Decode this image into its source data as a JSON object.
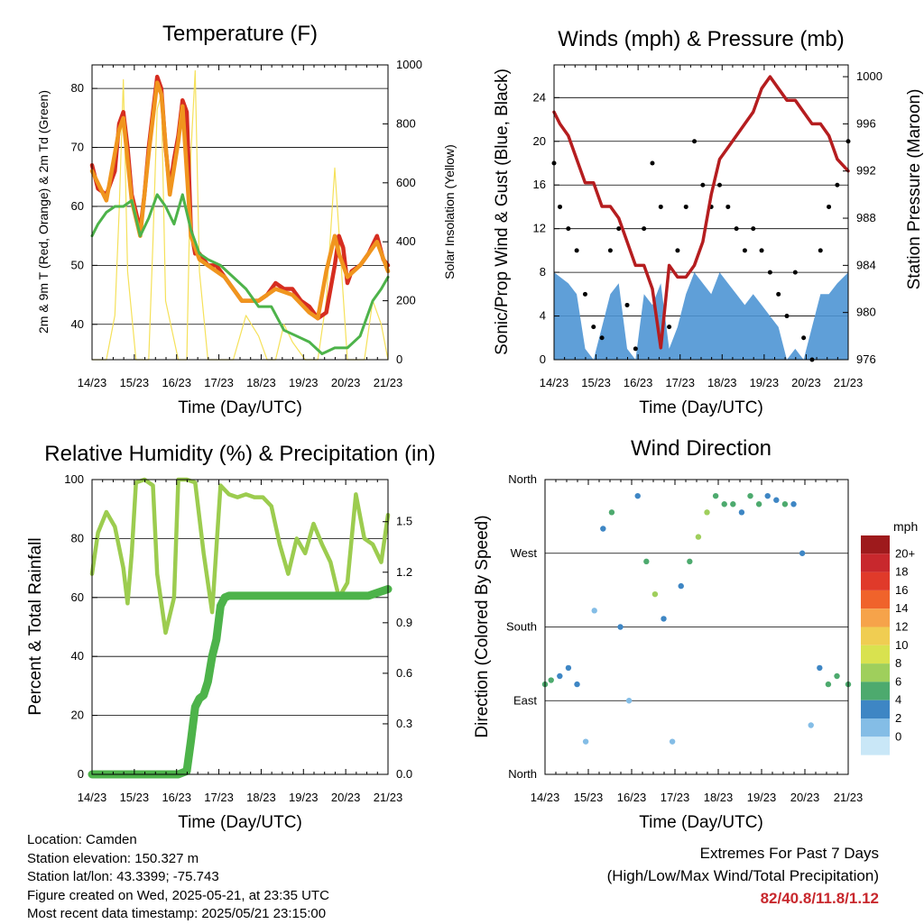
{
  "panels": {
    "temperature": {
      "title": "Temperature (F)",
      "ylabel_left": "2m & 9m T (Red, Orange) & 2m Td (Green)",
      "ylabel_right": "Solar Insolation (Yellow)",
      "xlabel": "Time (Day/UTC)"
    },
    "winds": {
      "title": "Winds (mph) & Pressure (mb)",
      "ylabel_left": "Sonic/Prop Wind & Gust (Blue, Black)",
      "ylabel_right": "Station Pressure (Maroon)",
      "xlabel": "Time (Day/UTC)"
    },
    "humidity": {
      "title": "Relative Humidity (%) & Precipitation (in)",
      "ylabel_left": "Percent & Total Rainfall",
      "xlabel": "Time (Day/UTC)"
    },
    "direction": {
      "title": "Wind Direction",
      "ylabel_left": "Direction (Colored By Speed)",
      "xlabel": "Time (Day/UTC)",
      "legend_title": "mph"
    }
  },
  "info": {
    "location": "Location: Camden",
    "elevation": "Station elevation: 150.327 m",
    "latlon": "Station lat/lon: 43.3399; -75.743",
    "created": "Figure created on Wed, 2025-05-21, at 23:35 UTC",
    "recent": "Most recent data timestamp: 2025/05/21 23:15:00"
  },
  "extremes": {
    "line1": "Extremes For Past 7 Days",
    "line2": "(High/Low/Max Wind/Total Precipitation)",
    "values": "82/40.8/11.8/1.12"
  },
  "colors": {
    "temp_2m": "#d62d20",
    "temp_9m": "#f0951e",
    "dewpoint": "#4db34a",
    "solar": "#f5e15a",
    "wind_sonic": "#4e95d4",
    "gust": "#000000",
    "pressure": "#b51d1f",
    "rh": "#9ccc4f",
    "rain": "#4db34a"
  },
  "chart_data": [
    {
      "type": "line",
      "title": "Temperature (F)",
      "xlabel": "Time (Day/UTC)",
      "ylabel": "2m & 9m T (Red, Orange) & 2m Td (Green)",
      "y2label": "Solar Insolation (Yellow)",
      "x_ticks": [
        "14/23",
        "15/23",
        "16/23",
        "17/23",
        "18/23",
        "19/23",
        "20/23",
        "21/23"
      ],
      "xlim": [
        14.96,
        21.96
      ],
      "ylim": [
        34,
        84
      ],
      "y_ticks": [
        40,
        50,
        60,
        70,
        80
      ],
      "y2lim": [
        0,
        1000
      ],
      "y2_ticks": [
        0,
        200,
        400,
        600,
        800,
        1000
      ],
      "grid": true,
      "series": [
        {
          "name": "2m T",
          "color": "#d62d20",
          "x": [
            14.96,
            15.1,
            15.3,
            15.5,
            15.6,
            15.7,
            15.8,
            15.9,
            16.1,
            16.2,
            16.3,
            16.4,
            16.5,
            16.6,
            16.7,
            16.8,
            16.9,
            17.0,
            17.1,
            17.2,
            17.3,
            17.4,
            17.5,
            17.6,
            17.7,
            17.9,
            18.1,
            18.3,
            18.5,
            18.7,
            18.9,
            19.1,
            19.3,
            19.5,
            19.7,
            19.9,
            20.1,
            20.3,
            20.5,
            20.7,
            20.8,
            20.9,
            21.0,
            21.1,
            21.3,
            21.5,
            21.7,
            21.85,
            21.96
          ],
          "values": [
            67,
            63,
            62,
            66,
            74,
            76,
            70,
            62,
            56,
            62,
            70,
            76,
            82,
            80,
            70,
            63,
            68,
            72,
            78,
            76,
            56,
            52,
            52,
            51,
            50,
            50,
            48,
            46,
            44,
            44,
            44,
            45,
            47,
            46,
            46,
            44,
            43,
            41,
            42,
            50,
            55,
            53,
            47,
            49,
            50,
            52,
            55,
            51,
            50
          ]
        },
        {
          "name": "9m T",
          "color": "#f0951e",
          "x": [
            14.96,
            15.3,
            15.6,
            15.7,
            15.9,
            16.1,
            16.3,
            16.5,
            16.6,
            16.8,
            17.0,
            17.1,
            17.3,
            17.5,
            17.7,
            18.1,
            18.5,
            18.9,
            19.3,
            19.7,
            20.1,
            20.3,
            20.5,
            20.7,
            20.8,
            21.0,
            21.3,
            21.7,
            21.96
          ],
          "values": [
            66,
            61,
            73,
            75,
            61,
            55,
            69,
            81,
            79,
            62,
            71,
            77,
            55,
            51,
            50,
            48,
            44,
            44,
            46,
            45,
            42,
            41,
            49,
            55,
            52,
            48,
            50,
            54,
            49
          ]
        },
        {
          "name": "2m Td",
          "color": "#4db34a",
          "x": [
            14.96,
            15.1,
            15.3,
            15.5,
            15.7,
            15.9,
            16.1,
            16.3,
            16.5,
            16.7,
            16.9,
            17.1,
            17.3,
            17.5,
            17.7,
            18.0,
            18.3,
            18.6,
            18.9,
            19.2,
            19.5,
            19.8,
            20.1,
            20.4,
            20.7,
            21.0,
            21.3,
            21.6,
            21.8,
            21.96
          ],
          "values": [
            55,
            57,
            59,
            60,
            60,
            61,
            55,
            58,
            62,
            60,
            57,
            62,
            56,
            52,
            51,
            50,
            48,
            46,
            43,
            43,
            39,
            38,
            37,
            35,
            36,
            36,
            38,
            44,
            46,
            48
          ]
        },
        {
          "name": "Solar Insolation",
          "color": "#f5e15a",
          "axis": "y2",
          "x": [
            14.96,
            15.3,
            15.5,
            15.6,
            15.7,
            15.8,
            16.0,
            16.3,
            16.4,
            16.5,
            16.6,
            16.7,
            17.0,
            17.2,
            17.3,
            17.4,
            17.5,
            17.7,
            18.0,
            18.3,
            18.6,
            18.9,
            19.1,
            19.3,
            19.5,
            19.7,
            20.0,
            20.3,
            20.5,
            20.7,
            21.0,
            21.4,
            21.6,
            21.8,
            21.96
          ],
          "values": [
            0,
            0,
            150,
            500,
            950,
            300,
            0,
            0,
            400,
            850,
            900,
            200,
            0,
            0,
            700,
            980,
            300,
            0,
            0,
            0,
            150,
            80,
            0,
            0,
            120,
            60,
            0,
            0,
            200,
            650,
            0,
            0,
            200,
            120,
            0
          ]
        }
      ]
    },
    {
      "type": "scatter",
      "title": "Winds (mph) & Pressure (mb)",
      "xlabel": "Time (Day/UTC)",
      "ylabel": "Sonic/Prop Wind & Gust (Blue, Black)",
      "y2label": "Station Pressure (Maroon)",
      "x_ticks": [
        "14/23",
        "15/23",
        "16/23",
        "17/23",
        "18/23",
        "19/23",
        "20/23",
        "21/23"
      ],
      "xlim": [
        14.96,
        21.96
      ],
      "ylim": [
        0,
        27
      ],
      "y_ticks": [
        0,
        4,
        8,
        12,
        16,
        20,
        24
      ],
      "y2lim": [
        976,
        1001
      ],
      "y2_ticks": [
        976,
        980,
        984,
        988,
        992,
        996,
        1000
      ],
      "grid": true,
      "series": [
        {
          "name": "Station Pressure",
          "type": "line",
          "axis": "y2",
          "color": "#b51d1f",
          "x": [
            14.96,
            15.1,
            15.3,
            15.5,
            15.7,
            15.9,
            16.1,
            16.3,
            16.5,
            16.7,
            16.9,
            17.1,
            17.3,
            17.5,
            17.7,
            17.9,
            18.1,
            18.3,
            18.5,
            18.7,
            18.9,
            19.1,
            19.3,
            19.5,
            19.7,
            19.9,
            20.1,
            20.3,
            20.5,
            20.7,
            20.9,
            21.1,
            21.3,
            21.5,
            21.7,
            21.96
          ],
          "values": [
            997,
            996,
            995,
            993,
            991,
            991,
            989,
            989,
            988,
            986,
            984,
            984,
            982,
            977,
            984,
            983,
            983,
            984,
            986,
            990,
            993,
            994,
            995,
            996,
            997,
            999,
            1000,
            999,
            998,
            998,
            997,
            996,
            996,
            995,
            993,
            992
          ]
        },
        {
          "name": "Sonic/Prop Wind",
          "type": "band",
          "color": "#4e95d4",
          "x": [
            14.96,
            15.3,
            15.5,
            15.7,
            15.9,
            16.1,
            16.3,
            16.5,
            16.7,
            16.9,
            17.1,
            17.3,
            17.5,
            17.7,
            17.9,
            18.1,
            18.3,
            18.5,
            18.7,
            18.9,
            19.1,
            19.3,
            19.5,
            19.7,
            19.9,
            20.1,
            20.3,
            20.5,
            20.7,
            20.9,
            21.1,
            21.3,
            21.5,
            21.7,
            21.96
          ],
          "values": [
            8,
            7,
            6,
            1,
            0,
            3,
            6,
            7,
            1,
            0,
            6,
            5,
            7,
            1,
            3,
            6,
            8,
            7,
            6,
            8,
            7,
            6,
            5,
            6,
            5,
            4,
            3,
            0,
            1,
            0,
            3,
            6,
            6,
            7,
            8
          ]
        },
        {
          "name": "Gust",
          "type": "scatter",
          "color": "#000000",
          "x": [
            14.96,
            15.1,
            15.3,
            15.5,
            15.7,
            15.9,
            16.1,
            16.3,
            16.5,
            16.7,
            16.9,
            17.1,
            17.3,
            17.5,
            17.7,
            17.9,
            18.1,
            18.3,
            18.5,
            18.7,
            18.9,
            19.1,
            19.3,
            19.5,
            19.7,
            19.9,
            20.1,
            20.3,
            20.5,
            20.7,
            20.9,
            21.1,
            21.3,
            21.5,
            21.7,
            21.96
          ],
          "values": [
            18,
            14,
            12,
            10,
            6,
            3,
            2,
            10,
            12,
            5,
            1,
            12,
            18,
            14,
            3,
            10,
            14,
            20,
            16,
            14,
            16,
            14,
            12,
            10,
            12,
            10,
            8,
            6,
            4,
            8,
            2,
            0,
            10,
            14,
            16,
            20
          ]
        }
      ]
    },
    {
      "type": "line",
      "title": "Relative Humidity (%) & Precipitation (in)",
      "xlabel": "Time (Day/UTC)",
      "ylabel": "Percent & Total Rainfall",
      "x_ticks": [
        "14/23",
        "15/23",
        "16/23",
        "17/23",
        "18/23",
        "19/23",
        "20/23",
        "21/23"
      ],
      "xlim": [
        14.96,
        21.96
      ],
      "ylim": [
        0,
        100
      ],
      "y_ticks": [
        0,
        20,
        40,
        60,
        80,
        100
      ],
      "y2lim": [
        0,
        1.75
      ],
      "y2_ticks": [
        0.0,
        0.3,
        0.6,
        0.9,
        1.2,
        1.5
      ],
      "grid": true,
      "series": [
        {
          "name": "RH",
          "color": "#9ccc4f",
          "x": [
            14.96,
            15.1,
            15.3,
            15.5,
            15.7,
            15.8,
            15.9,
            16.0,
            16.2,
            16.4,
            16.5,
            16.7,
            16.9,
            17.0,
            17.2,
            17.4,
            17.6,
            17.8,
            18.0,
            18.2,
            18.4,
            18.6,
            18.8,
            19.0,
            19.2,
            19.4,
            19.6,
            19.8,
            20.0,
            20.2,
            20.4,
            20.6,
            20.8,
            21.0,
            21.2,
            21.4,
            21.6,
            21.8,
            21.96
          ],
          "values": [
            68,
            82,
            89,
            84,
            70,
            58,
            75,
            99,
            100,
            98,
            68,
            48,
            60,
            100,
            100,
            99,
            75,
            55,
            98,
            95,
            94,
            95,
            94,
            94,
            91,
            78,
            68,
            80,
            75,
            85,
            78,
            72,
            60,
            65,
            95,
            80,
            78,
            72,
            88
          ]
        },
        {
          "name": "Total Rainfall",
          "color": "#4db34a",
          "axis": "y2",
          "x": [
            14.96,
            15.5,
            16.0,
            16.5,
            17.0,
            17.2,
            17.3,
            17.4,
            17.5,
            17.6,
            17.7,
            17.8,
            17.9,
            18.0,
            18.1,
            18.2,
            18.4,
            18.6,
            18.8,
            19.0,
            19.5,
            20.0,
            20.5,
            21.0,
            21.5,
            21.96
          ],
          "values": [
            0,
            0,
            0,
            0,
            0,
            0.02,
            0.2,
            0.4,
            0.45,
            0.47,
            0.55,
            0.7,
            0.8,
            1.0,
            1.05,
            1.06,
            1.06,
            1.06,
            1.06,
            1.06,
            1.06,
            1.06,
            1.06,
            1.06,
            1.06,
            1.1
          ]
        }
      ]
    },
    {
      "type": "scatter",
      "title": "Wind Direction",
      "xlabel": "Time (Day/UTC)",
      "ylabel": "Direction (Colored By Speed)",
      "x_ticks": [
        "14/23",
        "15/23",
        "16/23",
        "17/23",
        "18/23",
        "19/23",
        "20/23",
        "21/23"
      ],
      "xlim": [
        14.96,
        21.96
      ],
      "ylim": [
        0,
        360
      ],
      "y_tick_labels": [
        "North",
        "East",
        "South",
        "West",
        "North"
      ],
      "y_ticks": [
        0,
        90,
        180,
        270,
        360
      ],
      "legend": {
        "title": "mph",
        "placement": "right",
        "labels": [
          "20+",
          "18",
          "16",
          "14",
          "12",
          "10",
          "8",
          "6",
          "4",
          "2",
          "0"
        ],
        "colors": [
          "#9e1a1c",
          "#c8282d",
          "#e03a2a",
          "#f0632b",
          "#f6a34a",
          "#f0cd52",
          "#d9e24f",
          "#9fcf5c",
          "#4daa6e",
          "#3e86c4",
          "#84bde6",
          "#c9e7f7"
        ]
      },
      "series": [
        {
          "name": "Direction",
          "color": "#4e95d4",
          "x": [
            14.96,
            15.1,
            15.3,
            15.5,
            15.7,
            15.9,
            16.1,
            16.3,
            16.5,
            16.7,
            16.9,
            17.1,
            17.3,
            17.5,
            17.7,
            17.9,
            18.1,
            18.3,
            18.5,
            18.7,
            18.9,
            19.1,
            19.3,
            19.5,
            19.7,
            19.9,
            20.1,
            20.3,
            20.5,
            20.7,
            20.9,
            21.1,
            21.3,
            21.5,
            21.7,
            21.96
          ],
          "values": [
            110,
            115,
            120,
            130,
            110,
            40,
            200,
            300,
            320,
            180,
            90,
            340,
            260,
            220,
            190,
            40,
            230,
            260,
            290,
            320,
            340,
            330,
            330,
            320,
            340,
            330,
            340,
            335,
            330,
            330,
            270,
            60,
            130,
            110,
            120,
            110
          ],
          "speed": [
            6,
            5,
            4,
            4,
            3,
            2,
            2,
            3,
            5,
            4,
            2,
            3,
            6,
            8,
            4,
            2,
            4,
            6,
            8,
            7,
            6,
            5,
            5,
            4,
            5,
            5,
            4,
            4,
            5,
            4,
            3,
            1,
            3,
            5,
            6,
            6
          ]
        }
      ]
    }
  ]
}
